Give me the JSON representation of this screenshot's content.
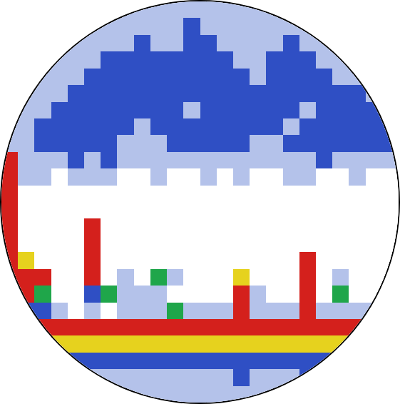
{
  "chart_data": {
    "type": "heatmap",
    "x": [
      0,
      1,
      2,
      3,
      4,
      5,
      6,
      7,
      8,
      9,
      10,
      11,
      12,
      13,
      14,
      15,
      16,
      17,
      18,
      19,
      20,
      21,
      22,
      23
    ],
    "y": [
      0,
      1,
      2,
      3,
      4,
      5,
      6,
      7,
      8,
      9,
      10,
      11,
      12,
      13,
      14,
      15,
      16,
      17,
      18,
      19,
      20,
      21,
      22,
      23
    ],
    "z": [
      [
        0,
        0,
        0,
        0,
        0,
        0,
        0,
        1,
        1,
        1,
        1,
        1,
        1,
        1,
        1,
        1,
        1,
        0,
        0,
        0,
        0,
        0,
        0,
        0
      ],
      [
        0,
        0,
        0,
        0,
        0,
        1,
        1,
        1,
        1,
        1,
        1,
        2,
        1,
        1,
        1,
        1,
        1,
        1,
        1,
        0,
        0,
        0,
        0,
        0
      ],
      [
        0,
        0,
        0,
        1,
        1,
        1,
        1,
        1,
        2,
        1,
        1,
        2,
        2,
        1,
        1,
        1,
        1,
        2,
        1,
        1,
        1,
        0,
        0,
        0
      ],
      [
        0,
        0,
        1,
        1,
        1,
        1,
        2,
        2,
        2,
        2,
        2,
        2,
        2,
        2,
        1,
        1,
        2,
        2,
        2,
        1,
        1,
        1,
        0,
        0
      ],
      [
        0,
        1,
        1,
        1,
        1,
        2,
        2,
        2,
        2,
        2,
        2,
        2,
        2,
        2,
        2,
        1,
        2,
        2,
        2,
        2,
        1,
        1,
        1,
        0
      ],
      [
        1,
        1,
        1,
        1,
        2,
        2,
        2,
        2,
        2,
        2,
        2,
        2,
        2,
        2,
        2,
        2,
        2,
        2,
        2,
        2,
        2,
        2,
        1,
        1
      ],
      [
        1,
        1,
        1,
        2,
        2,
        2,
        2,
        2,
        2,
        2,
        2,
        1,
        2,
        2,
        2,
        2,
        2,
        2,
        1,
        2,
        2,
        2,
        2,
        1
      ],
      [
        1,
        1,
        2,
        2,
        2,
        2,
        2,
        2,
        1,
        2,
        2,
        2,
        2,
        2,
        2,
        2,
        2,
        1,
        2,
        2,
        2,
        2,
        2,
        2
      ],
      [
        1,
        1,
        2,
        2,
        2,
        2,
        2,
        1,
        1,
        1,
        2,
        2,
        2,
        2,
        2,
        1,
        1,
        2,
        2,
        2,
        2,
        2,
        2,
        2
      ],
      [
        5,
        1,
        1,
        1,
        2,
        1,
        2,
        1,
        1,
        1,
        1,
        1,
        1,
        1,
        1,
        1,
        1,
        1,
        1,
        2,
        1,
        1,
        1,
        1
      ],
      [
        5,
        1,
        1,
        0,
        1,
        1,
        1,
        0,
        0,
        1,
        0,
        0,
        1,
        0,
        1,
        0,
        0,
        1,
        1,
        0,
        0,
        1,
        0,
        0
      ],
      [
        5,
        0,
        0,
        0,
        0,
        0,
        0,
        0,
        0,
        0,
        0,
        0,
        0,
        0,
        0,
        0,
        0,
        0,
        0,
        0,
        0,
        0,
        0,
        0
      ],
      [
        5,
        0,
        0,
        0,
        0,
        0,
        0,
        0,
        0,
        0,
        0,
        0,
        0,
        0,
        0,
        0,
        0,
        0,
        0,
        0,
        0,
        0,
        0,
        0
      ],
      [
        5,
        0,
        0,
        0,
        0,
        5,
        0,
        0,
        0,
        0,
        0,
        0,
        0,
        0,
        0,
        0,
        0,
        0,
        0,
        0,
        0,
        0,
        0,
        0
      ],
      [
        5,
        0,
        0,
        0,
        0,
        5,
        0,
        0,
        0,
        0,
        0,
        0,
        0,
        0,
        0,
        0,
        0,
        0,
        0,
        0,
        0,
        0,
        0,
        0
      ],
      [
        5,
        4,
        0,
        0,
        0,
        5,
        0,
        0,
        0,
        0,
        0,
        0,
        0,
        0,
        0,
        0,
        0,
        0,
        5,
        0,
        0,
        0,
        0,
        0
      ],
      [
        5,
        5,
        5,
        0,
        0,
        5,
        0,
        1,
        0,
        3,
        1,
        0,
        0,
        0,
        4,
        0,
        0,
        0,
        5,
        0,
        1,
        0,
        0,
        0
      ],
      [
        3,
        5,
        3,
        0,
        0,
        2,
        3,
        1,
        1,
        1,
        0,
        0,
        0,
        0,
        5,
        1,
        0,
        0,
        5,
        0,
        3,
        0,
        0,
        0
      ],
      [
        1,
        2,
        2,
        1,
        0,
        1,
        0,
        1,
        1,
        1,
        3,
        1,
        1,
        1,
        5,
        1,
        1,
        1,
        5,
        1,
        1,
        1,
        1,
        0
      ],
      [
        5,
        5,
        5,
        5,
        5,
        5,
        5,
        5,
        5,
        5,
        5,
        5,
        5,
        5,
        5,
        5,
        5,
        5,
        5,
        5,
        5,
        5,
        5,
        5
      ],
      [
        4,
        4,
        4,
        4,
        4,
        4,
        4,
        4,
        4,
        4,
        4,
        4,
        4,
        4,
        4,
        4,
        4,
        4,
        4,
        4,
        4,
        4,
        4,
        4
      ],
      [
        2,
        2,
        2,
        2,
        2,
        2,
        2,
        2,
        2,
        2,
        2,
        2,
        2,
        2,
        2,
        2,
        2,
        2,
        2,
        2,
        2,
        2,
        2,
        2
      ],
      [
        1,
        1,
        1,
        1,
        1,
        1,
        1,
        1,
        1,
        1,
        1,
        1,
        1,
        1,
        2,
        1,
        1,
        1,
        2,
        1,
        1,
        1,
        1,
        1
      ],
      [
        0,
        0,
        0,
        0,
        0,
        1,
        1,
        1,
        1,
        1,
        1,
        1,
        1,
        1,
        1,
        1,
        1,
        1,
        1,
        0,
        0,
        0,
        0,
        0
      ]
    ],
    "zlim": [
      0,
      5
    ],
    "xlim": [
      -0.5,
      23.5
    ],
    "ylim": [
      23.5,
      -0.5
    ],
    "xticks": [
      1.5,
      11.9
    ],
    "yticks": [
      10.8,
      12.7,
      14.6,
      16.5,
      18.4
    ],
    "grid": true,
    "tick_labels": false
  }
}
